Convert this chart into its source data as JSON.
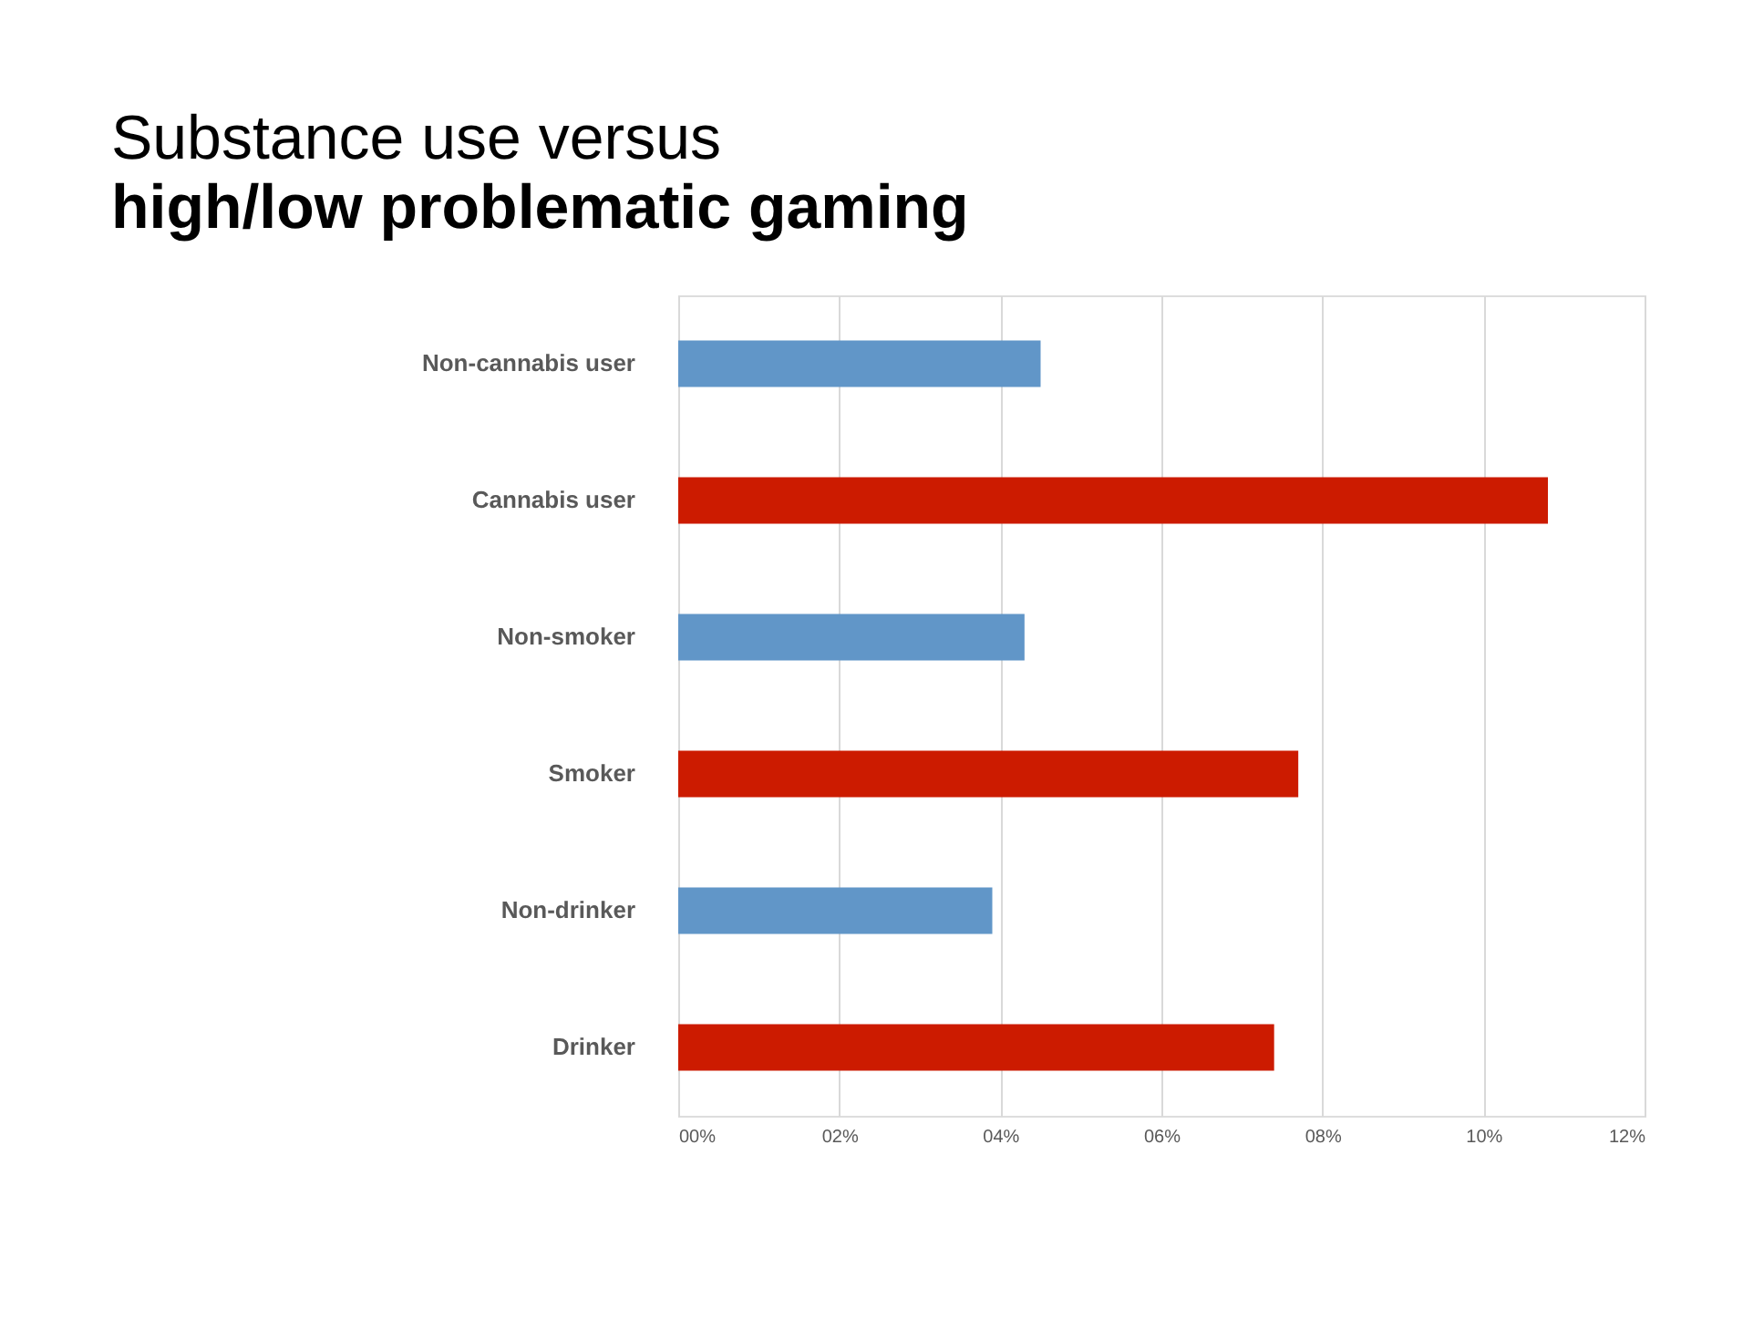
{
  "chart_data": {
    "type": "bar",
    "orientation": "horizontal",
    "title": "Substance use versus",
    "subtitle": "high/low problematic gaming",
    "categories": [
      "Non-cannabis user",
      "Cannabis user",
      "Non-smoker",
      "Smoker",
      "Non-drinker",
      "Drinker"
    ],
    "values": [
      4.5,
      10.8,
      4.3,
      7.7,
      3.9,
      7.4
    ],
    "colors": [
      "#6196c8",
      "#cc1b00",
      "#6196c8",
      "#cc1b00",
      "#6196c8",
      "#cc1b00"
    ],
    "xlim": [
      0,
      12
    ],
    "xticks": [
      {
        "value": 0,
        "label": "00%"
      },
      {
        "value": 2,
        "label": "02%"
      },
      {
        "value": 4,
        "label": "04%"
      },
      {
        "value": 6,
        "label": "06%"
      },
      {
        "value": 8,
        "label": "08%"
      },
      {
        "value": 10,
        "label": "10%"
      },
      {
        "value": 12,
        "label": "12%"
      }
    ],
    "grid": "x"
  }
}
